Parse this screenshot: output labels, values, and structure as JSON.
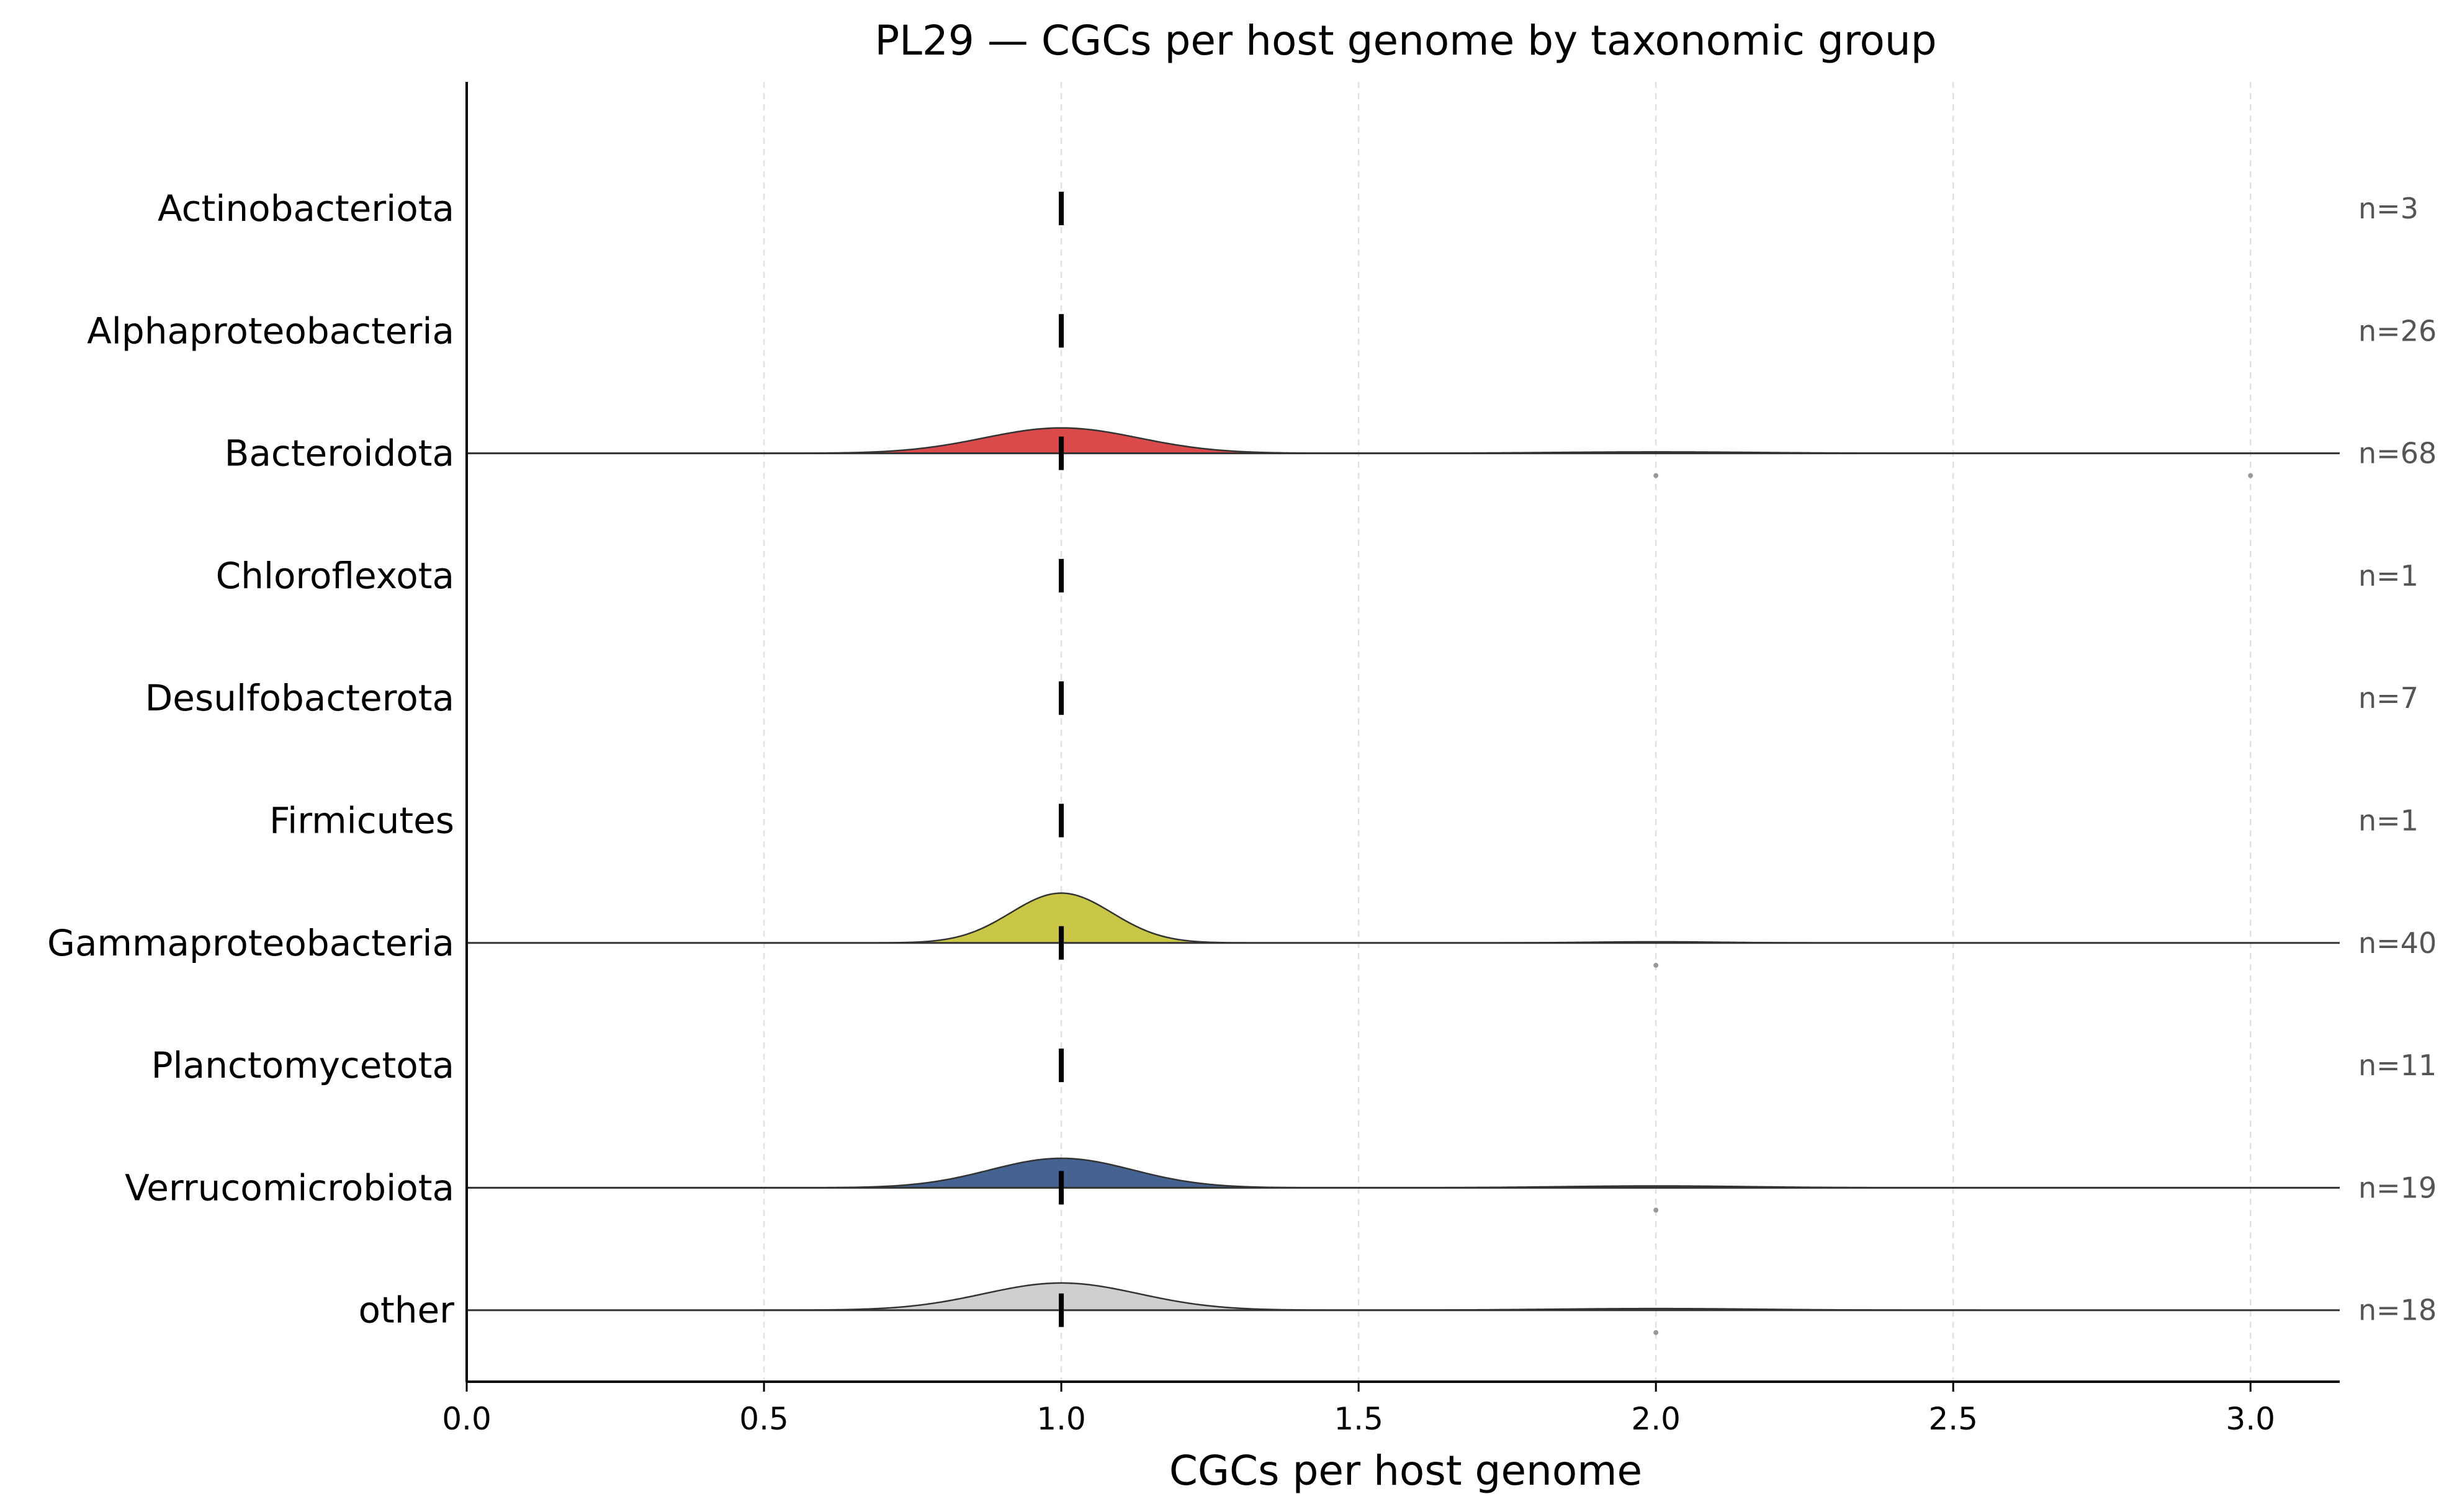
{
  "chart_data": {
    "type": "ridgeline",
    "title": "PL29 — CGCs per host genome by taxonomic group",
    "xlabel": "CGCs per host genome",
    "ylabel": "",
    "xlim": [
      0.0,
      3.15
    ],
    "xticks": [
      0.0,
      0.5,
      1.0,
      1.5,
      2.0,
      2.5,
      3.0
    ],
    "xtick_labels": [
      "0.0",
      "0.5",
      "1.0",
      "1.5",
      "2.0",
      "2.5",
      "3.0"
    ],
    "grid": "vertical dashed",
    "groups": [
      {
        "name": "Actinobacteriota",
        "n_label": "n=3",
        "median": 1.0,
        "has_density": false,
        "outliers": []
      },
      {
        "name": "Alphaproteobacteria",
        "n_label": "n=26",
        "median": 1.0,
        "has_density": false,
        "outliers": []
      },
      {
        "name": "Bacteroidota",
        "n_label": "n=68",
        "median": 1.0,
        "has_density": true,
        "color": "#d94040",
        "bandwidth": 0.13,
        "peak": 0.56,
        "secondary": [
          {
            "x": 2.0,
            "height": 0.03
          }
        ],
        "outliers": [
          2.0,
          3.0
        ]
      },
      {
        "name": "Chloroflexota",
        "n_label": "n=1",
        "median": 1.0,
        "has_density": false,
        "outliers": []
      },
      {
        "name": "Desulfobacterota",
        "n_label": "n=7",
        "median": 1.0,
        "has_density": false,
        "outliers": []
      },
      {
        "name": "Firmicutes",
        "n_label": "n=1",
        "median": 1.0,
        "has_density": false,
        "outliers": []
      },
      {
        "name": "Gammaproteobacteria",
        "n_label": "n=40",
        "median": 1.0,
        "has_density": true,
        "color": "#c8c43c",
        "bandwidth": 0.085,
        "peak": 1.1,
        "secondary": [
          {
            "x": 2.0,
            "height": 0.025
          }
        ],
        "outliers": [
          2.0
        ]
      },
      {
        "name": "Planctomycetota",
        "n_label": "n=11",
        "median": 1.0,
        "has_density": false,
        "outliers": []
      },
      {
        "name": "Verrucomicrobiota",
        "n_label": "n=19",
        "median": 1.0,
        "has_density": true,
        "color": "#3a5a8c",
        "bandwidth": 0.12,
        "peak": 0.65,
        "secondary": [
          {
            "x": 2.0,
            "height": 0.04
          }
        ],
        "outliers": [
          2.0
        ]
      },
      {
        "name": "other",
        "n_label": "n=18",
        "median": 1.0,
        "has_density": true,
        "color": "#cccccc",
        "bandwidth": 0.13,
        "peak": 0.6,
        "secondary": [
          {
            "x": 2.0,
            "height": 0.035
          }
        ],
        "outliers": [
          2.0
        ]
      }
    ]
  }
}
